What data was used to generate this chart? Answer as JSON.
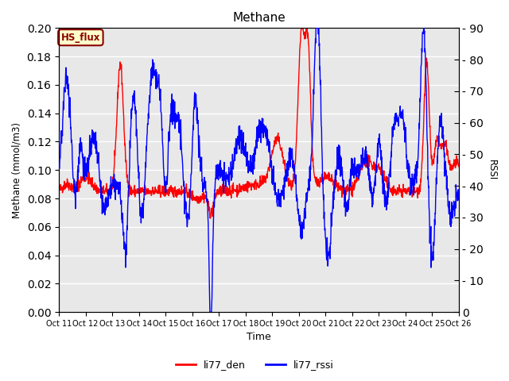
{
  "title": "Methane",
  "ylabel_left": "Methane (mmol/m3)",
  "ylabel_right": "RSSI",
  "xlabel": "Time",
  "ylim_left": [
    0.0,
    0.2
  ],
  "ylim_right": [
    0,
    90
  ],
  "yticks_left": [
    0.0,
    0.02,
    0.04,
    0.06,
    0.08,
    0.1,
    0.12,
    0.14,
    0.16,
    0.18,
    0.2
  ],
  "yticks_right": [
    0,
    10,
    20,
    30,
    40,
    50,
    60,
    70,
    80,
    90
  ],
  "xtick_labels": [
    "Oct 11",
    "Oct 12",
    "Oct 13",
    "Oct 14",
    "Oct 15",
    "Oct 16",
    "Oct 17",
    "Oct 18",
    "Oct 19",
    "Oct 20",
    "Oct 21",
    "Oct 22",
    "Oct 23",
    "Oct 24",
    "Oct 25",
    "Oct 26"
  ],
  "line_red_label": "li77_den",
  "line_blue_label": "li77_rssi",
  "line_red_color": "#ff0000",
  "line_blue_color": "#0000ff",
  "bg_color": "#e8e8e8",
  "fig_bg_color": "#ffffff",
  "hs_flux_label": "HS_flux",
  "hs_flux_bg": "#ffffcc",
  "hs_flux_border": "#8b0000",
  "grid_color": "#ffffff"
}
